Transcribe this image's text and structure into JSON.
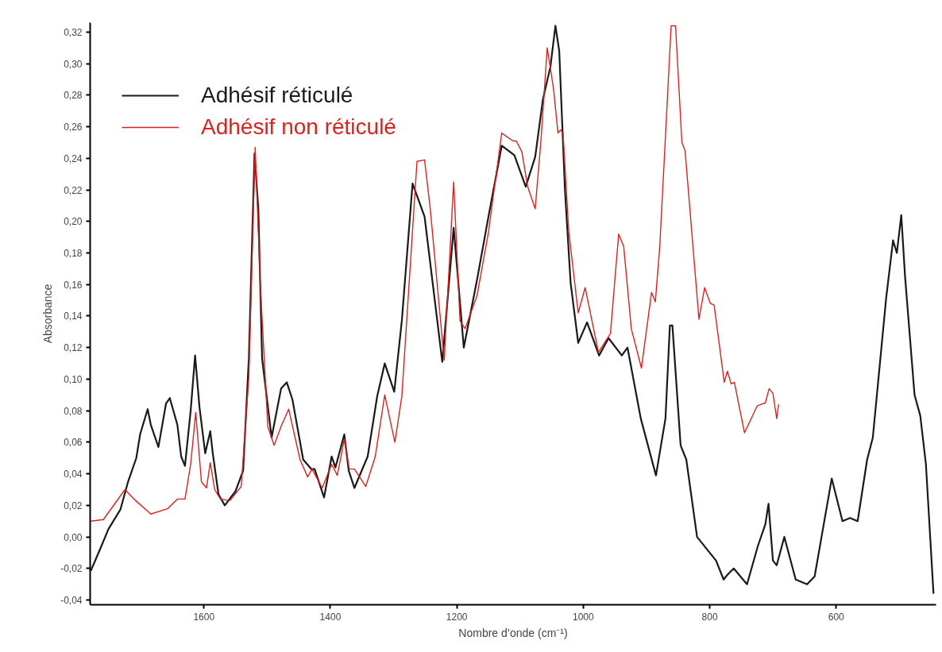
{
  "chart_data": {
    "type": "line",
    "xlabel": "Nombre d’onde (cm⁻¹)",
    "ylabel": "Absorbance",
    "xlim": [
      1780,
      442
    ],
    "ylim": [
      -0.043,
      0.326
    ],
    "xticks": [
      1600,
      1400,
      1200,
      1000,
      800,
      600
    ],
    "yticks": [
      {
        "value": -0.04,
        "label": "-0,04"
      },
      {
        "value": -0.02,
        "label": "-0,02"
      },
      {
        "value": 0,
        "label": "0,00"
      },
      {
        "value": 0.02,
        "label": "0,02"
      },
      {
        "value": 0.04,
        "label": "0,04"
      },
      {
        "value": 0.06,
        "label": "0,06"
      },
      {
        "value": 0.08,
        "label": "0,08"
      },
      {
        "value": 0.1,
        "label": "0,10"
      },
      {
        "value": 0.12,
        "label": "0,12"
      },
      {
        "value": 0.14,
        "label": "0,14"
      },
      {
        "value": 0.16,
        "label": "0,16"
      },
      {
        "value": 0.18,
        "label": "0,18"
      },
      {
        "value": 0.2,
        "label": "0,20"
      },
      {
        "value": 0.22,
        "label": "0,22"
      },
      {
        "value": 0.24,
        "label": "0,24"
      },
      {
        "value": 0.26,
        "label": "0,26"
      },
      {
        "value": 0.28,
        "label": "0,28"
      },
      {
        "value": 0.3,
        "label": "0,30"
      },
      {
        "value": 0.32,
        "label": "0,32"
      }
    ],
    "grid": false,
    "legend": "top left",
    "marker": "none",
    "line_style": "solid",
    "series": [
      {
        "name": "Adhésif réticulé",
        "color": "#1a1a1a",
        "x": [
          1779,
          1764,
          1751,
          1732,
          1720,
          1707,
          1701,
          1689,
          1684,
          1672,
          1660,
          1654,
          1642,
          1636,
          1630,
          1621,
          1614,
          1607,
          1598,
          1590,
          1586,
          1577,
          1567,
          1550,
          1538,
          1529,
          1520,
          1514,
          1508,
          1493,
          1478,
          1469,
          1460,
          1443,
          1430,
          1425,
          1410,
          1398,
          1392,
          1378,
          1371,
          1362,
          1341,
          1326,
          1314,
          1299,
          1287,
          1270,
          1251,
          1223,
          1205,
          1189,
          1168,
          1150,
          1129,
          1109,
          1091,
          1076,
          1064,
          1052,
          1044,
          1038,
          1029,
          1020,
          1008,
          994,
          975,
          960,
          939,
          930,
          909,
          885,
          870,
          863,
          859,
          846,
          837,
          820,
          790,
          778,
          772,
          762,
          741,
          724,
          712,
          707,
          700,
          694,
          682,
          664,
          646,
          634,
          607,
          590,
          578,
          566,
          551,
          542,
          521,
          510,
          504,
          497,
          491,
          476,
          467,
          458,
          446
        ],
        "values": [
          -0.0215,
          -0.0075,
          0.005,
          0.0175,
          0.035,
          0.05,
          0.065,
          0.081,
          0.071,
          0.057,
          0.0845,
          0.088,
          0.071,
          0.051,
          0.045,
          0.08,
          0.115,
          0.082,
          0.053,
          0.067,
          0.053,
          0.027,
          0.02,
          0.029,
          0.042,
          0.113,
          0.243,
          0.208,
          0.113,
          0.063,
          0.094,
          0.098,
          0.087,
          0.049,
          0.043,
          0.043,
          0.025,
          0.051,
          0.044,
          0.065,
          0.042,
          0.031,
          0.051,
          0.089,
          0.11,
          0.092,
          0.137,
          0.224,
          0.203,
          0.111,
          0.196,
          0.12,
          0.163,
          0.203,
          0.248,
          0.242,
          0.222,
          0.241,
          0.277,
          0.298,
          0.324,
          0.308,
          0.22,
          0.161,
          0.123,
          0.136,
          0.115,
          0.126,
          0.115,
          0.12,
          0.075,
          0.039,
          0.075,
          0.134,
          0.134,
          0.058,
          0.049,
          0.0,
          -0.015,
          -0.027,
          -0.024,
          -0.02,
          -0.03,
          -0.006,
          0.008,
          0.021,
          -0.015,
          -0.018,
          0.0,
          -0.027,
          -0.03,
          -0.025,
          0.037,
          0.01,
          0.012,
          0.01,
          0.049,
          0.063,
          0.151,
          0.188,
          0.18,
          0.204,
          0.165,
          0.09,
          0.077,
          0.046,
          -0.036
        ]
      },
      {
        "name": "Adhésif non réticulé",
        "color": "#e0201b",
        "x": [
          1779,
          1759,
          1725,
          1708,
          1684,
          1657,
          1642,
          1630,
          1621,
          1613,
          1604,
          1596,
          1590,
          1583,
          1574,
          1559,
          1541,
          1529,
          1519,
          1511,
          1499,
          1489,
          1478,
          1466,
          1448,
          1436,
          1429,
          1413,
          1398,
          1389,
          1378,
          1370,
          1362,
          1344,
          1329,
          1314,
          1298,
          1287,
          1263,
          1251,
          1242,
          1220,
          1205,
          1195,
          1187,
          1168,
          1150,
          1129,
          1111,
          1106,
          1097,
          1088,
          1076,
          1067,
          1057,
          1047,
          1040,
          1036,
          1032,
          1023,
          1008,
          997,
          976,
          957,
          944,
          936,
          924,
          908,
          892,
          886,
          879,
          861,
          854,
          844,
          839,
          817,
          808,
          799,
          793,
          777,
          772,
          766,
          761,
          745,
          725,
          712,
          706,
          700,
          694,
          691
        ],
        "values": [
          0.01,
          0.011,
          0.03,
          0.023,
          0.0145,
          0.018,
          0.024,
          0.024,
          0.046,
          0.079,
          0.035,
          0.031,
          0.047,
          0.03,
          0.024,
          0.023,
          0.032,
          0.101,
          0.247,
          0.161,
          0.07,
          0.058,
          0.07,
          0.081,
          0.049,
          0.038,
          0.043,
          0.031,
          0.046,
          0.039,
          0.062,
          0.043,
          0.043,
          0.032,
          0.051,
          0.09,
          0.06,
          0.089,
          0.238,
          0.239,
          0.208,
          0.112,
          0.225,
          0.137,
          0.132,
          0.153,
          0.193,
          0.256,
          0.251,
          0.251,
          0.244,
          0.222,
          0.208,
          0.251,
          0.31,
          0.284,
          0.256,
          0.258,
          0.256,
          0.194,
          0.142,
          0.158,
          0.117,
          0.129,
          0.192,
          0.184,
          0.132,
          0.107,
          0.155,
          0.149,
          0.184,
          0.324,
          0.324,
          0.25,
          0.245,
          0.138,
          0.158,
          0.148,
          0.147,
          0.098,
          0.105,
          0.097,
          0.098,
          0.066,
          0.083,
          0.085,
          0.094,
          0.091,
          0.075,
          0.084
        ]
      }
    ]
  }
}
